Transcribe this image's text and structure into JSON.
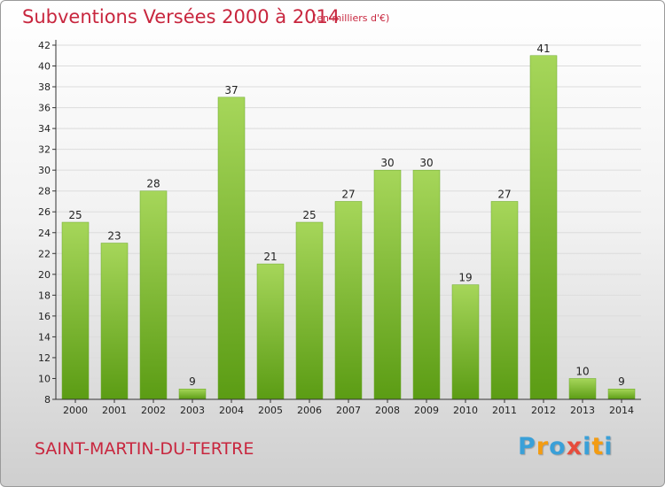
{
  "header": {
    "title": "Subventions Versées 2000 à 2014",
    "unit_note": "(en milliers d'€)"
  },
  "footer": {
    "commune": "SAINT-MARTIN-DU-TERTRE",
    "logo": [
      "P",
      "r",
      "o",
      "x",
      "i",
      "t",
      "i"
    ],
    "logo_colors": [
      "#3aa0d8",
      "#f39c12",
      "#3aa0d8",
      "#e74c3c",
      "#3aa0d8",
      "#f39c12",
      "#3aa0d8"
    ]
  },
  "colors": {
    "title": "#c8263e",
    "bar_top": "#a6d65a",
    "bar_bottom": "#5b9c14",
    "grid": "#dcdcdc",
    "axis": "#333333"
  },
  "chart_data": {
    "type": "bar",
    "title": "Subventions Versées 2000 à 2014",
    "subtitle": "(en milliers d'€)",
    "xlabel": "",
    "ylabel": "",
    "categories": [
      "2000",
      "2001",
      "2002",
      "2003",
      "2004",
      "2005",
      "2006",
      "2007",
      "2008",
      "2009",
      "2010",
      "2011",
      "2012",
      "2013",
      "2014"
    ],
    "values": [
      25,
      23,
      28,
      9,
      37,
      21,
      25,
      27,
      30,
      30,
      19,
      27,
      41,
      10,
      9
    ],
    "ylim": [
      8,
      42
    ],
    "yticks": [
      8,
      10,
      12,
      14,
      16,
      18,
      20,
      22,
      24,
      26,
      28,
      30,
      32,
      34,
      36,
      38,
      40,
      42
    ],
    "grid": true,
    "data_labels": true
  }
}
